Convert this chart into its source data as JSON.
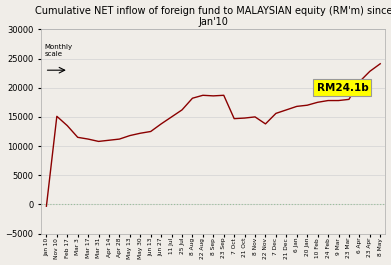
{
  "title": "Cumulative NET inflow of foreign fund to MALAYSIAN equity (RM'm) since\nJan'10",
  "ylim": [
    -5000,
    30000
  ],
  "yticks": [
    -5000,
    0,
    5000,
    10000,
    15000,
    20000,
    25000,
    30000
  ],
  "annotation_text": "RM24.1b",
  "monthly_scale_text": "Monthly\nscale",
  "line_color": "#8B0000",
  "bg_color": "#f0ede8",
  "zero_line_color": "#9bbf9b",
  "x_labels": [
    "Jan 10",
    "Nov 10",
    "Feb 17",
    "Mar 3",
    "Mar 17",
    "Mar 31",
    "Apr 14",
    "Apr 28",
    "May 13",
    "May 30",
    "Jun 13",
    "Jun 27",
    "11 Jul",
    "25 Jul",
    "8 Aug",
    "22 Aug",
    "8 Sep",
    "23 Sep",
    "7 Oct",
    "21 Oct",
    "8 Nov",
    "22 Nov",
    "7 Dec",
    "21 Dec",
    "6 Jan",
    "20 Jan",
    "10 Feb",
    "24 Feb",
    "9 Mar",
    "23 Mar",
    "6 Apr",
    "23 Apr",
    "8 May"
  ],
  "y_values": [
    -300,
    15100,
    13500,
    11500,
    11200,
    10800,
    11000,
    11200,
    11800,
    12200,
    12500,
    13800,
    15000,
    16200,
    18200,
    18700,
    18600,
    18700,
    14700,
    14800,
    15000,
    13800,
    15600,
    16200,
    16800,
    17000,
    17500,
    17800,
    17800,
    18000,
    21000,
    22800,
    24100
  ]
}
